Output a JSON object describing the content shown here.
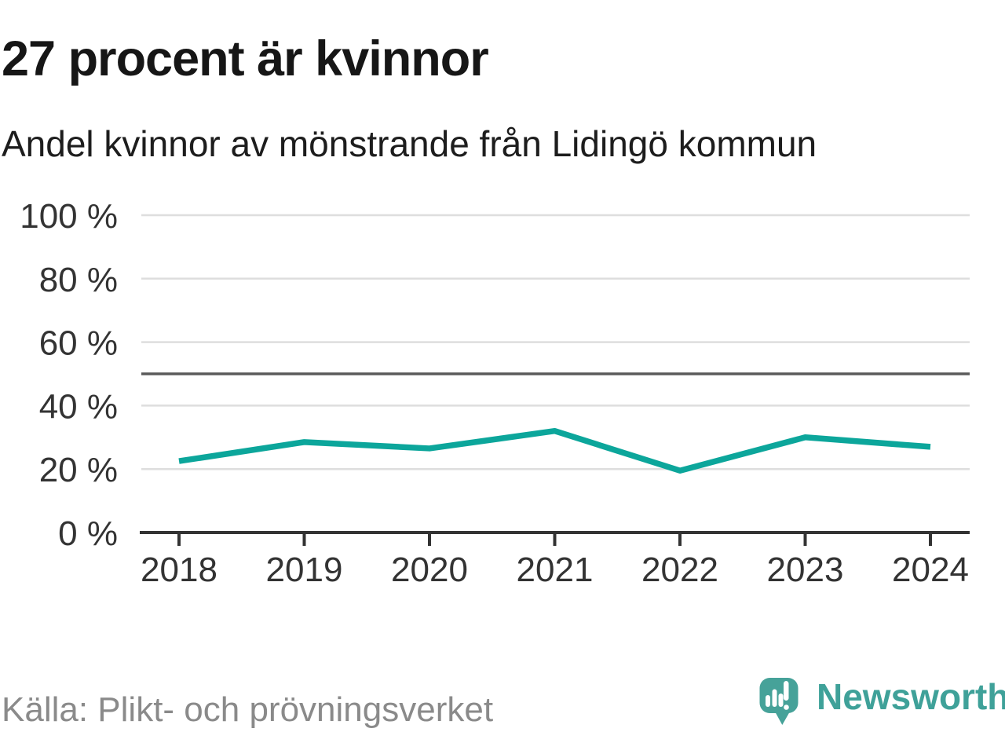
{
  "header": {
    "title": "27 procent är kvinnor",
    "subtitle": "Andel kvinnor av mönstrande från Lidingö kommun"
  },
  "chart_data": {
    "type": "line",
    "title": "27 procent är kvinnor",
    "subtitle": "Andel kvinnor av mönstrande från Lidingö kommun",
    "x": [
      "2018",
      "2019",
      "2020",
      "2021",
      "2022",
      "2023",
      "2024"
    ],
    "values": [
      22.5,
      28.5,
      26.5,
      32,
      19.5,
      30,
      27
    ],
    "series_name": "Andel kvinnor av mönstrande",
    "unit": "%",
    "ylim": [
      0,
      100
    ],
    "yticks": [
      0,
      20,
      40,
      60,
      80,
      100
    ],
    "ytick_suffix": " %",
    "reference_line": 50,
    "grid": true,
    "legend": false,
    "colors": {
      "line": "#0ca69b",
      "grid": "#dedede",
      "reference": "#5b5b5b",
      "axis": "#333333",
      "axis_text": "#333333",
      "brand_teal": "#3fa199"
    }
  },
  "footer": {
    "source": "Källa: Plikt- och prövningsverket",
    "brand": "Newsworthy"
  }
}
